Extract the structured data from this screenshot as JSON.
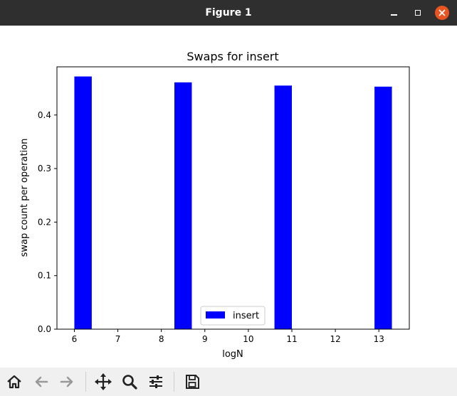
{
  "window": {
    "title": "Figure 1"
  },
  "chart_data": {
    "type": "bar",
    "title": "Swaps for insert",
    "xlabel": "logN",
    "ylabel": "swap count per operation",
    "xlim": [
      5.6,
      13.7
    ],
    "ylim": [
      0,
      0.49
    ],
    "xticks": [
      "6",
      "7",
      "8",
      "9",
      "10",
      "11",
      "12",
      "13"
    ],
    "yticks": [
      "0.0",
      "0.1",
      "0.2",
      "0.3",
      "0.4"
    ],
    "bar_width": 0.4,
    "color": "#0000ff",
    "legend": {
      "placement": "lower-center",
      "entries": [
        "insert"
      ]
    },
    "series": [
      {
        "name": "insert",
        "x": [
          6.2,
          8.5,
          10.8,
          13.1
        ],
        "values": [
          0.472,
          0.461,
          0.455,
          0.453
        ]
      }
    ],
    "grid": false
  },
  "toolbar": {
    "buttons": [
      "home-icon",
      "back-icon",
      "forward-icon",
      "pan-icon",
      "zoom-icon",
      "configure-subplots-icon",
      "save-icon"
    ]
  }
}
